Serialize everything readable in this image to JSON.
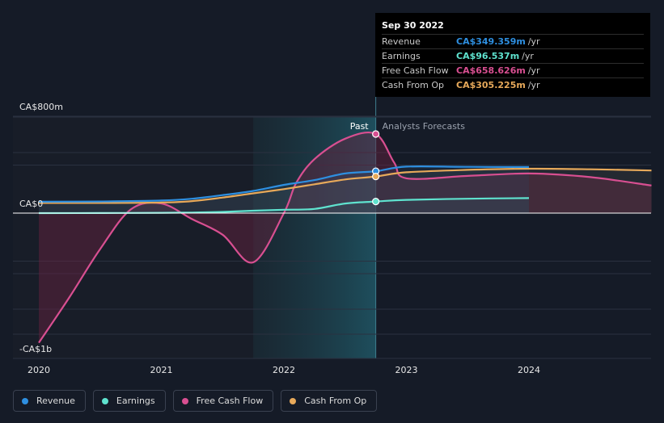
{
  "tooltip": {
    "date": "Sep 30 2022",
    "rows": [
      {
        "label": "Revenue",
        "value": "CA$349.359m",
        "unit": "/yr",
        "color": "#2e8fe0"
      },
      {
        "label": "Earnings",
        "value": "CA$96.537m",
        "unit": "/yr",
        "color": "#5fe3cf"
      },
      {
        "label": "Free Cash Flow",
        "value": "CA$658.626m",
        "unit": "/yr",
        "color": "#d84f91"
      },
      {
        "label": "Cash From Op",
        "value": "CA$305.225m",
        "unit": "/yr",
        "color": "#e7a95a"
      }
    ]
  },
  "legend": [
    {
      "label": "Revenue",
      "color": "#2e8fe0"
    },
    {
      "label": "Earnings",
      "color": "#5fe3cf"
    },
    {
      "label": "Free Cash Flow",
      "color": "#d84f91"
    },
    {
      "label": "Cash From Op",
      "color": "#e7a95a"
    }
  ],
  "chart_data": {
    "type": "line",
    "title": "",
    "xlabel": "",
    "ylabel": "",
    "x_tick_labels": [
      "2020",
      "2021",
      "2022",
      "2023",
      "2024"
    ],
    "y_tick_labels": [
      {
        "label": "CA$800m",
        "value": 800
      },
      {
        "label": "CA$0",
        "value": 0
      },
      {
        "label": "-CA$1b",
        "value": -1000
      }
    ],
    "ylim": [
      -1200,
      800
    ],
    "xlim": [
      2019.83,
      2024.98
    ],
    "past_label": "Past",
    "forecast_label": "Analysts Forecasts",
    "past_end": 2022.75,
    "highlight_start": 2021.75,
    "units": "CA$ millions",
    "series": [
      {
        "name": "Revenue",
        "color": "#2e8fe0",
        "x": [
          2020,
          2020.5,
          2021,
          2021.25,
          2021.5,
          2021.75,
          2022,
          2022.25,
          2022.5,
          2022.75,
          2023,
          2023.5,
          2024
        ],
        "y": [
          95,
          97,
          105,
          120,
          150,
          185,
          235,
          275,
          330,
          349,
          387,
          385,
          384
        ]
      },
      {
        "name": "Earnings",
        "color": "#5fe3cf",
        "x": [
          2020,
          2020.5,
          2021,
          2021.25,
          2021.5,
          2021.75,
          2022,
          2022.25,
          2022.5,
          2022.75,
          2023,
          2023.5,
          2024
        ],
        "y": [
          0,
          1,
          3,
          5,
          10,
          20,
          28,
          35,
          80,
          96.5,
          110,
          120,
          125
        ]
      },
      {
        "name": "Free Cash Flow",
        "color": "#d84f91",
        "x": [
          2020,
          2020.25,
          2020.5,
          2020.75,
          2021,
          2021.25,
          2021.5,
          2021.75,
          2022,
          2022.1,
          2022.25,
          2022.5,
          2022.75,
          2022.9,
          2023,
          2023.5,
          2024,
          2024.5,
          2025
        ],
        "y": [
          -1080,
          -700,
          -300,
          30,
          80,
          -50,
          -180,
          -410,
          0,
          250,
          450,
          620,
          659,
          420,
          290,
          310,
          330,
          300,
          230
        ]
      },
      {
        "name": "Cash From Op",
        "color": "#e7a95a",
        "x": [
          2020,
          2020.5,
          2021,
          2021.25,
          2021.5,
          2021.75,
          2022,
          2022.25,
          2022.5,
          2022.75,
          2023,
          2023.5,
          2024,
          2024.5,
          2025
        ],
        "y": [
          85,
          85,
          88,
          100,
          130,
          165,
          200,
          240,
          280,
          305,
          340,
          360,
          370,
          365,
          355
        ]
      }
    ],
    "markers": [
      {
        "series": "Revenue",
        "x": 2022.75,
        "y": 349
      },
      {
        "series": "Earnings",
        "x": 2022.75,
        "y": 96.5
      },
      {
        "series": "Free Cash Flow",
        "x": 2022.75,
        "y": 659
      },
      {
        "series": "Cash From Op",
        "x": 2022.75,
        "y": 305
      }
    ]
  }
}
